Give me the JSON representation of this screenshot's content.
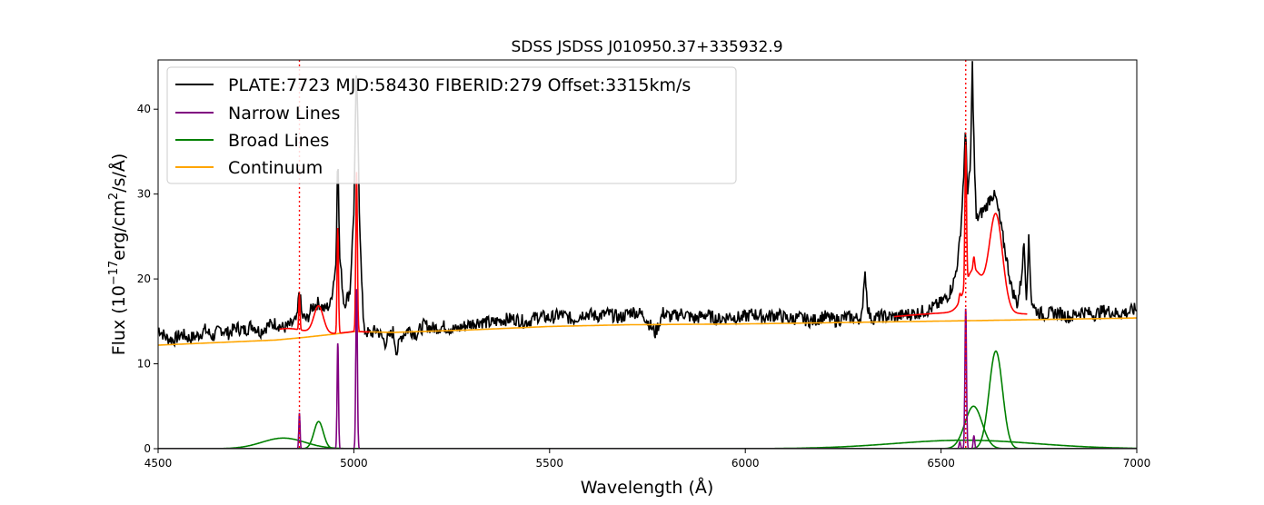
{
  "chart_data": {
    "type": "line",
    "title": "SDSS JSDSS J010950.37+335932.9",
    "xlabel": "Wavelength (Å)",
    "ylabel_parts": [
      "Flux (10",
      "−17",
      "erg/cm",
      "2",
      "/s/Å)"
    ],
    "xlim": [
      4500,
      7000
    ],
    "ylim": [
      0,
      45.8
    ],
    "xticks": [
      4500,
      5000,
      5500,
      6000,
      6500,
      7000
    ],
    "yticks": [
      0,
      10,
      20,
      30,
      40
    ],
    "vlines": [
      4861,
      6563
    ],
    "legend": {
      "placement": "top-left",
      "entries": [
        {
          "label": "PLATE:7723 MJD:58430 FIBERID:279 Offset:3315km/s",
          "color": "#000000"
        },
        {
          "label": "Narrow Lines",
          "color": "#800080"
        },
        {
          "label": "Broad Lines",
          "color": "#008000"
        },
        {
          "label": "Continuum",
          "color": "#ffa500"
        }
      ]
    },
    "colors": {
      "spectrum": "#000000",
      "model": "#ff0000",
      "narrow": "#800080",
      "broad": "#008000",
      "continuum": "#ffa500",
      "vline": "#ff0000"
    },
    "series": [
      {
        "name": "Continuum",
        "x": [
          4500,
          4600,
          4700,
          4800,
          4870,
          4950,
          5000,
          5100,
          5300,
          5500,
          5700,
          6000,
          6300,
          6600,
          7000
        ],
        "y": [
          12.2,
          12.4,
          12.6,
          12.8,
          13.1,
          13.5,
          13.8,
          13.7,
          14.0,
          14.4,
          14.6,
          14.7,
          14.9,
          15.1,
          15.4
        ]
      },
      {
        "name": "Narrow Lines",
        "components": [
          {
            "center": 4861,
            "amp": 4.2,
            "sigma": 1.6
          },
          {
            "center": 4959,
            "amp": 12.4,
            "sigma": 1.8
          },
          {
            "center": 5007,
            "amp": 18.8,
            "sigma": 2.0
          },
          {
            "center": 6563,
            "amp": 16.5,
            "sigma": 2.0
          },
          {
            "center": 6548,
            "amp": 0.8,
            "sigma": 2.0
          },
          {
            "center": 6584,
            "amp": 1.5,
            "sigma": 2.0
          }
        ]
      },
      {
        "name": "Broad Lines",
        "components": [
          {
            "center": 4820,
            "amp": 1.25,
            "sigma": 55
          },
          {
            "center": 4910,
            "amp": 3.2,
            "sigma": 12
          },
          {
            "center": 6560,
            "amp": 1.0,
            "sigma": 180
          },
          {
            "center": 6583,
            "amp": 5.0,
            "sigma": 22
          },
          {
            "center": 6640,
            "amp": 11.5,
            "sigma": 17
          }
        ]
      },
      {
        "name": "PLATE:7723 MJD:58430 FIBERID:279 Offset:3315km/s",
        "x": [
          4500,
          4520,
          4540,
          4560,
          4580,
          4600,
          4620,
          4640,
          4660,
          4680,
          4700,
          4720,
          4740,
          4760,
          4780,
          4800,
          4820,
          4840,
          4855,
          4861,
          4867,
          4880,
          4895,
          4910,
          4925,
          4940,
          4955,
          4959,
          4963,
          4975,
          4990,
          5000,
          5007,
          5014,
          5025,
          5040,
          5060,
          5080,
          5100,
          5110,
          5120,
          5140,
          5160,
          5180,
          5200,
          5230,
          5260,
          5290,
          5320,
          5350,
          5380,
          5410,
          5440,
          5470,
          5500,
          5530,
          5560,
          5590,
          5620,
          5650,
          5680,
          5710,
          5740,
          5770,
          5790,
          5810,
          5840,
          5870,
          5900,
          5930,
          5960,
          5990,
          6020,
          6050,
          6080,
          6110,
          6140,
          6170,
          6200,
          6230,
          6260,
          6290,
          6300,
          6305,
          6312,
          6320,
          6350,
          6380,
          6410,
          6440,
          6470,
          6500,
          6520,
          6535,
          6545,
          6552,
          6558,
          6563,
          6568,
          6575,
          6580,
          6585,
          6590,
          6600,
          6615,
          6630,
          6640,
          6650,
          6665,
          6680,
          6695,
          6705,
          6712,
          6718,
          6724,
          6731,
          6740,
          6760,
          6780,
          6800,
          6830,
          6860,
          6890,
          6920,
          6950,
          6980,
          7000
        ],
        "y": [
          14.2,
          13.1,
          12.8,
          13.5,
          13.0,
          13.3,
          14.0,
          13.2,
          14.1,
          13.6,
          14.3,
          13.9,
          14.6,
          13.8,
          14.5,
          14.8,
          14.2,
          14.6,
          15.2,
          19.2,
          15.6,
          15.2,
          16.8,
          17.2,
          16.4,
          17.0,
          22.0,
          37.2,
          23.0,
          17.0,
          18.5,
          28.0,
          45.8,
          28.0,
          14.0,
          13.5,
          14.0,
          12.5,
          13.8,
          11.3,
          13.2,
          14.1,
          13.5,
          14.6,
          14.2,
          14.4,
          14.0,
          14.6,
          15.0,
          14.8,
          15.2,
          15.3,
          14.9,
          15.6,
          15.4,
          15.8,
          15.2,
          16.0,
          15.6,
          15.9,
          15.4,
          16.2,
          15.8,
          13.6,
          16.0,
          15.5,
          16.0,
          15.3,
          15.8,
          15.2,
          15.6,
          15.4,
          15.9,
          15.5,
          15.8,
          15.3,
          15.4,
          15.0,
          15.6,
          15.1,
          15.5,
          15.3,
          16.0,
          21.6,
          17.0,
          15.3,
          15.6,
          15.5,
          15.8,
          16.0,
          16.4,
          17.2,
          18.2,
          20.0,
          23.0,
          27.0,
          32.5,
          37.6,
          30.0,
          33.0,
          45.2,
          34.0,
          27.0,
          27.6,
          28.5,
          30.0,
          29.5,
          27.0,
          23.0,
          19.0,
          17.0,
          20.0,
          24.3,
          18.0,
          24.5,
          17.5,
          16.4,
          15.8,
          15.9,
          16.0,
          15.5,
          16.2,
          15.8,
          16.3,
          15.9,
          16.1,
          16.5
        ]
      }
    ]
  }
}
